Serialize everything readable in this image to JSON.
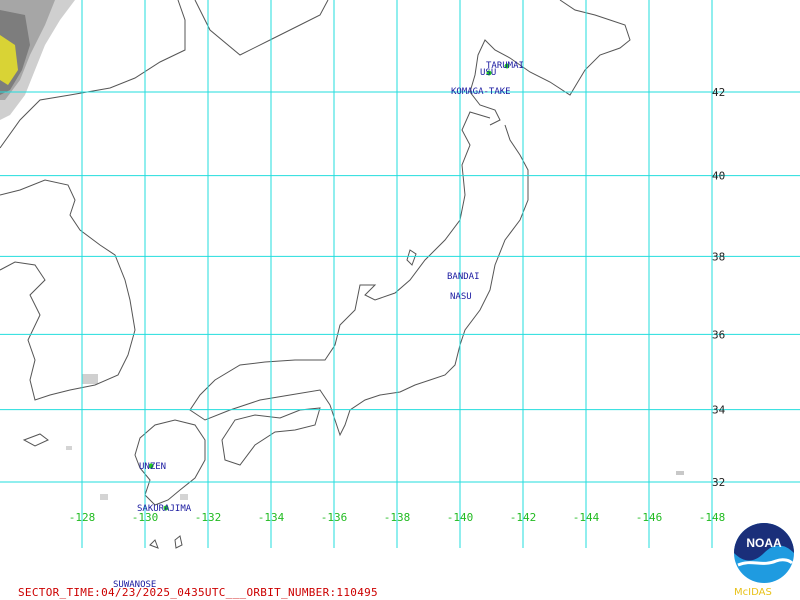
{
  "map": {
    "latitudes": [
      {
        "label": "42",
        "value": 42
      },
      {
        "label": "40",
        "value": 40
      },
      {
        "label": "38",
        "value": 38
      },
      {
        "label": "36",
        "value": 36
      },
      {
        "label": "34",
        "value": 34
      },
      {
        "label": "32",
        "value": 32
      }
    ],
    "longitudes": [
      {
        "label": "-128",
        "value": -128
      },
      {
        "label": "-130",
        "value": -130
      },
      {
        "label": "-132",
        "value": -132
      },
      {
        "label": "-134",
        "value": -134
      },
      {
        "label": "-136",
        "value": -136
      },
      {
        "label": "-138",
        "value": -138
      },
      {
        "label": "-140",
        "value": -140
      },
      {
        "label": "-142",
        "value": -142
      },
      {
        "label": "-144",
        "value": -144
      },
      {
        "label": "-146",
        "value": -146
      },
      {
        "label": "-148",
        "value": -148
      }
    ],
    "grid_color": "#22dddd",
    "coast_color": "#555555"
  },
  "volcanoes": [
    {
      "name": "TARUMAI"
    },
    {
      "name": "USU"
    },
    {
      "name": "KOMAGA-TAKE"
    },
    {
      "name": "BANDAI"
    },
    {
      "name": "NASU"
    },
    {
      "name": "UNZEN"
    },
    {
      "name": "SAKURAJIMA"
    },
    {
      "name": "SUWANOSE"
    }
  ],
  "footer": {
    "sector_time": "SECTOR_TIME:04/23/2025_0435UTC___ORBIT_NUMBER:110495"
  },
  "logo": {
    "text": "NOAA",
    "caption": "McIDAS",
    "colors": {
      "navy": "#1a2f7a",
      "sky": "#1f9be0",
      "caption": "#e8c21a"
    }
  }
}
